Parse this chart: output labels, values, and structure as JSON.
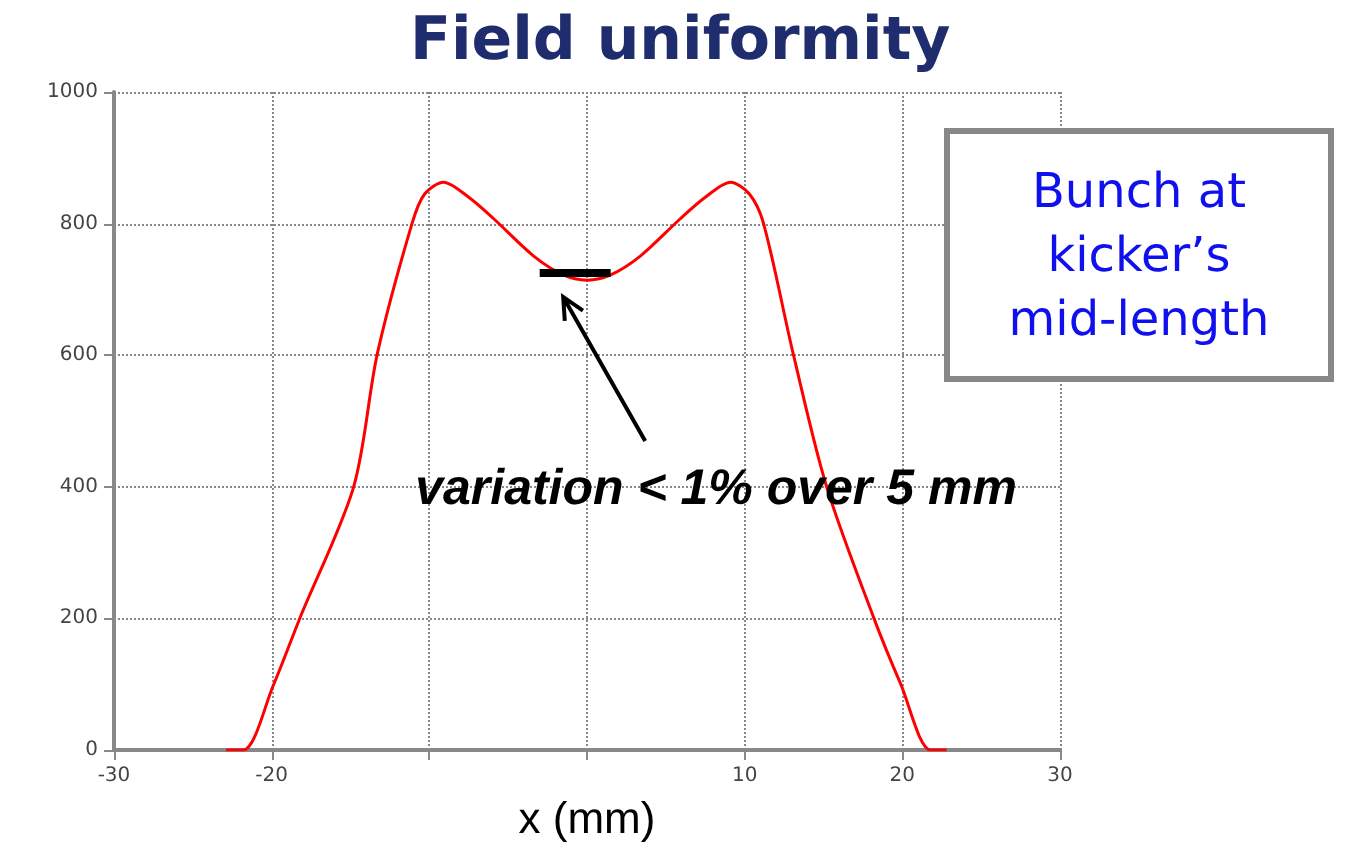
{
  "chart_data": {
    "type": "line",
    "title": "Field uniformity",
    "xlabel": "x (mm)",
    "x": [
      -22.9,
      -21.8,
      -19.9,
      -18.2,
      -14.8,
      -13.3,
      -11.1,
      -10.3,
      -9.1,
      -7.5,
      -5.9,
      -3.4,
      -1.5,
      0,
      1.5,
      3.4,
      5.9,
      7.5,
      9.1,
      10.3,
      11.2,
      13.1,
      15.2,
      18.2,
      19.9,
      21.8,
      22.8
    ],
    "series": [
      {
        "color": "#ff0000",
        "values": [
          0,
          0,
          98,
          201,
          400,
          602,
          800,
          845,
          863,
          840,
          807,
          751,
          722,
          714,
          722,
          751,
          807,
          840,
          863,
          845,
          800,
          600,
          400,
          200,
          100,
          0,
          0
        ]
      },
      {
        "color": "#000000",
        "x": [
          -3,
          1.5
        ],
        "values": [
          725,
          725
        ]
      }
    ],
    "xlim": [
      -30,
      30
    ],
    "xticks": [
      -30,
      -20,
      {
        "value": -10,
        "label": null
      },
      {
        "value": 0,
        "label": null
      },
      10,
      20,
      30
    ],
    "ylim": [
      0,
      1000
    ],
    "yticks": [
      0,
      200,
      400,
      600,
      800,
      1000
    ],
    "grid": true,
    "marker": "none",
    "line_style": "solid",
    "annotations": [
      "variation < 1% over 5 mm",
      "Bunch at kicker’s mid-length"
    ]
  }
}
